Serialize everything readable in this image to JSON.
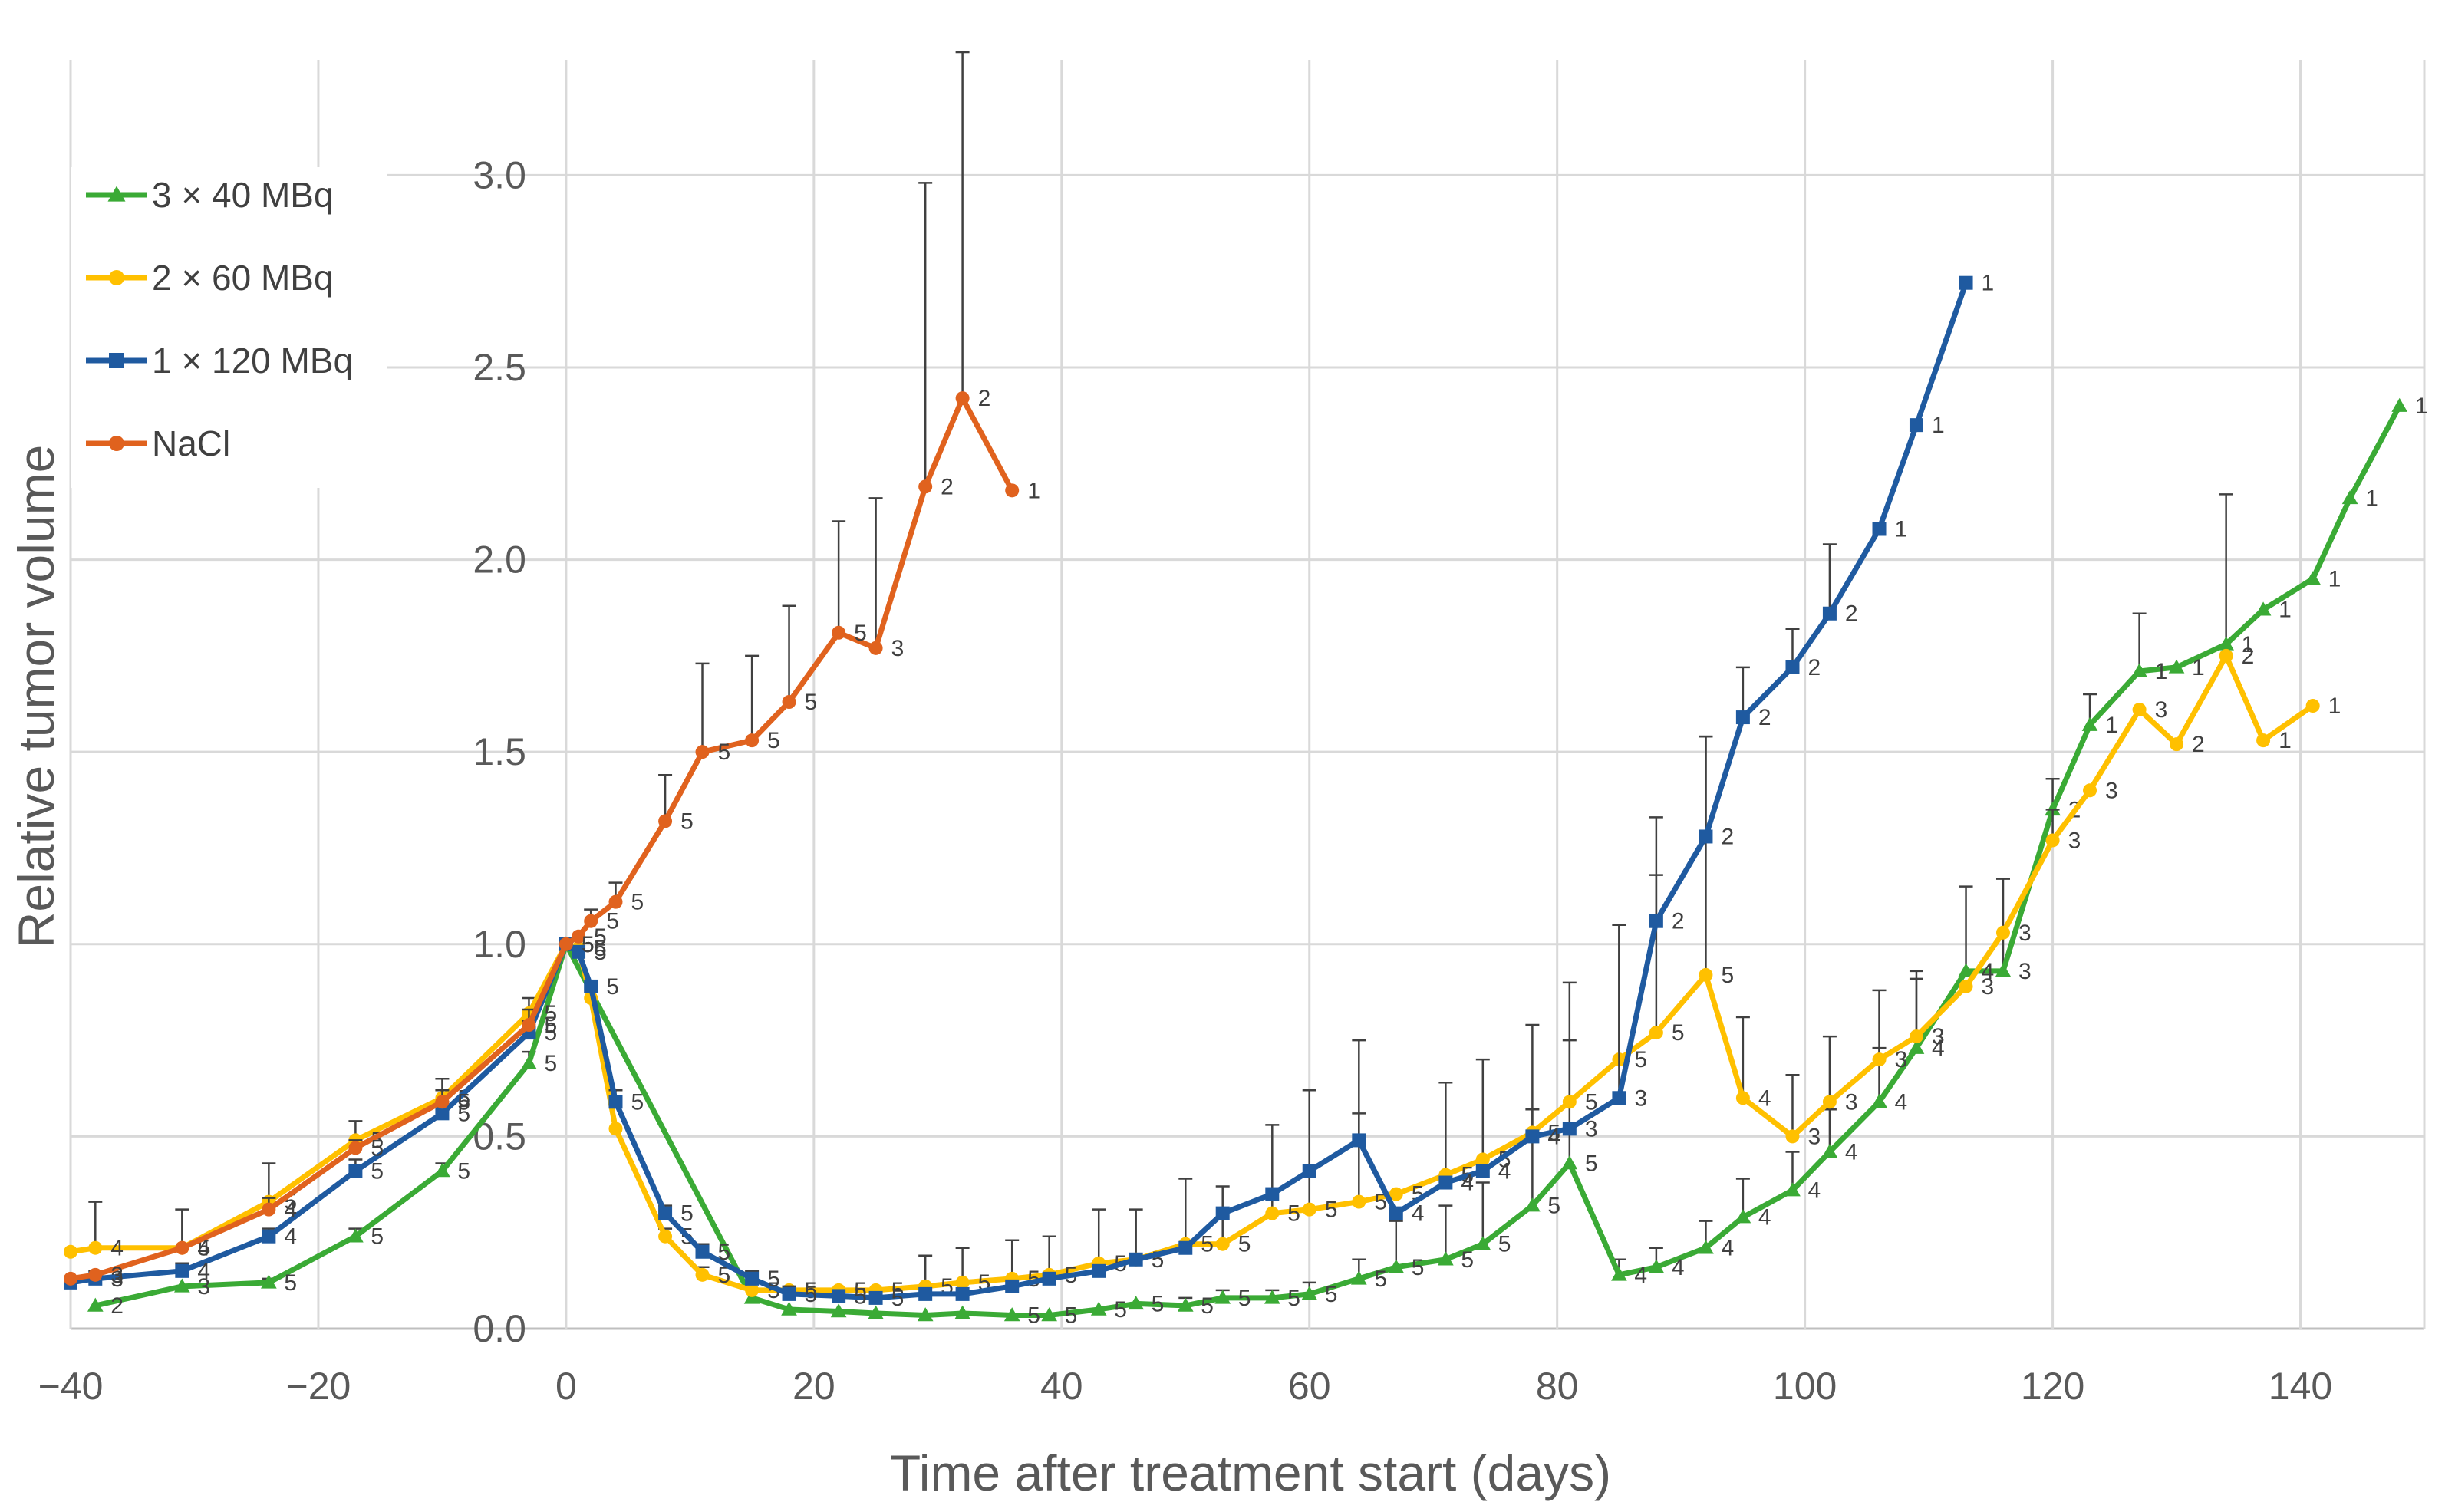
{
  "chart_data": {
    "type": "line",
    "title": "",
    "xlabel": "Time after treatment start (days)",
    "ylabel": "Relative tumor volume",
    "xlim": [
      -40,
      150
    ],
    "ylim": [
      0,
      3.3
    ],
    "xticks": [
      -40,
      -20,
      0,
      20,
      40,
      60,
      80,
      100,
      120,
      140
    ],
    "xtick_labels": [
      "−40",
      "−20",
      "0",
      "20",
      "40",
      "60",
      "80",
      "100",
      "120",
      "140"
    ],
    "yticks": [
      0,
      0.5,
      1,
      1.5,
      2,
      2.5,
      3
    ],
    "ytick_labels": [
      "0.0",
      "0.5",
      "1.0",
      "1.5",
      "2.0",
      "2.5",
      "3.0"
    ],
    "grid": true,
    "legend_position": "top-left",
    "series": [
      {
        "name": "3 × 40 MBq",
        "color": "#3aaa35",
        "marker": "triangle",
        "points": [
          {
            "x": -38,
            "y": 0.06,
            "n": "2"
          },
          {
            "x": -31,
            "y": 0.11,
            "n": "3"
          },
          {
            "x": -24,
            "y": 0.12,
            "n": "5",
            "err": 0.01
          },
          {
            "x": -17,
            "y": 0.24,
            "n": "5",
            "err": 0.02
          },
          {
            "x": -10,
            "y": 0.41,
            "n": "5",
            "err": 0.02
          },
          {
            "x": -3,
            "y": 0.69,
            "n": "5",
            "err": 0.03
          },
          {
            "x": 0,
            "y": 1.0,
            "n": "5"
          },
          {
            "x": 15,
            "y": 0.08
          },
          {
            "x": 18,
            "y": 0.05
          },
          {
            "x": 22,
            "y": 0.045
          },
          {
            "x": 25,
            "y": 0.04
          },
          {
            "x": 29,
            "y": 0.035
          },
          {
            "x": 32,
            "y": 0.04
          },
          {
            "x": 36,
            "y": 0.035,
            "n": "5"
          },
          {
            "x": 39,
            "y": 0.035,
            "n": "5"
          },
          {
            "x": 43,
            "y": 0.05,
            "n": "5"
          },
          {
            "x": 46,
            "y": 0.065,
            "n": "5"
          },
          {
            "x": 50,
            "y": 0.06,
            "n": "5",
            "err": 0.02
          },
          {
            "x": 53,
            "y": 0.08,
            "n": "5",
            "err": 0.02
          },
          {
            "x": 57,
            "y": 0.08,
            "n": "5",
            "err": 0.02
          },
          {
            "x": 60,
            "y": 0.09,
            "n": "5",
            "err": 0.03
          },
          {
            "x": 64,
            "y": 0.13,
            "n": "5",
            "err": 0.05
          },
          {
            "x": 67,
            "y": 0.16,
            "n": "5",
            "err": 0.12
          },
          {
            "x": 71,
            "y": 0.18,
            "n": "5",
            "err": 0.14
          },
          {
            "x": 74,
            "y": 0.22,
            "n": "5",
            "err": 0.16
          },
          {
            "x": 78,
            "y": 0.32,
            "n": "5",
            "err": 0.25
          },
          {
            "x": 81,
            "y": 0.43,
            "n": "5",
            "err": 0.32
          },
          {
            "x": 85,
            "y": 0.14,
            "n": "4",
            "err": 0.04
          },
          {
            "x": 88,
            "y": 0.16,
            "n": "4",
            "err": 0.05
          },
          {
            "x": 92,
            "y": 0.21,
            "n": "4",
            "err": 0.07
          },
          {
            "x": 95,
            "y": 0.29,
            "n": "4",
            "err": 0.1
          },
          {
            "x": 99,
            "y": 0.36,
            "n": "4",
            "err": 0.1
          },
          {
            "x": 102,
            "y": 0.46,
            "n": "4",
            "err": 0.11
          },
          {
            "x": 106,
            "y": 0.59,
            "n": "4",
            "err": 0.14
          },
          {
            "x": 109,
            "y": 0.73,
            "n": "4",
            "err": 0.18
          },
          {
            "x": 113,
            "y": 0.93,
            "n": "4",
            "err": 0.22
          },
          {
            "x": 116,
            "y": 0.93,
            "n": "3",
            "err": 0.24
          },
          {
            "x": 120,
            "y": 1.35,
            "n": "2",
            "err": 0.08
          },
          {
            "x": 123,
            "y": 1.57,
            "n": "1",
            "err": 0.08
          },
          {
            "x": 127,
            "y": 1.71,
            "n": "1",
            "err": 0.15
          },
          {
            "x": 130,
            "y": 1.72,
            "n": "1"
          },
          {
            "x": 134,
            "y": 1.78,
            "n": "1",
            "err": 0.39
          },
          {
            "x": 137,
            "y": 1.87,
            "n": "1"
          },
          {
            "x": 141,
            "y": 1.95,
            "n": "1"
          },
          {
            "x": 144,
            "y": 2.16,
            "n": "1"
          },
          {
            "x": 148,
            "y": 2.4,
            "n": "1"
          }
        ]
      },
      {
        "name": "2 × 60 MBq",
        "color": "#ffc000",
        "marker": "circle",
        "points": [
          {
            "x": -40,
            "y": 0.2
          },
          {
            "x": -38,
            "y": 0.21,
            "n": "4",
            "err": 0.12
          },
          {
            "x": -31,
            "y": 0.21,
            "n": "5",
            "err": 0.1
          },
          {
            "x": -24,
            "y": 0.33,
            "n": "5",
            "err": 0.1
          },
          {
            "x": -17,
            "y": 0.49,
            "n": "5",
            "err": 0.05
          },
          {
            "x": -10,
            "y": 0.6,
            "n": "5",
            "err": 0.05
          },
          {
            "x": -3,
            "y": 0.82,
            "n": "5",
            "err": 0.04
          },
          {
            "x": 0,
            "y": 1.0,
            "n": "5"
          },
          {
            "x": 1,
            "y": 0.99,
            "n": "5"
          },
          {
            "x": 2,
            "y": 0.86
          },
          {
            "x": 4,
            "y": 0.52
          },
          {
            "x": 8,
            "y": 0.24,
            "n": "5",
            "err": 0.02
          },
          {
            "x": 11,
            "y": 0.14,
            "n": "5",
            "err": 0.02
          },
          {
            "x": 15,
            "y": 0.1,
            "n": "5"
          },
          {
            "x": 18,
            "y": 0.1,
            "n": "5"
          },
          {
            "x": 22,
            "y": 0.1,
            "n": "5"
          },
          {
            "x": 25,
            "y": 0.1,
            "n": "5"
          },
          {
            "x": 29,
            "y": 0.11,
            "n": "5",
            "err": 0.08
          },
          {
            "x": 32,
            "y": 0.12,
            "n": "5",
            "err": 0.09
          },
          {
            "x": 36,
            "y": 0.13,
            "n": "5",
            "err": 0.1
          },
          {
            "x": 39,
            "y": 0.14,
            "n": "5",
            "err": 0.1
          },
          {
            "x": 43,
            "y": 0.17,
            "n": "5",
            "err": 0.14
          },
          {
            "x": 46,
            "y": 0.18,
            "n": "5",
            "err": 0.13
          },
          {
            "x": 50,
            "y": 0.22,
            "n": "5",
            "err": 0.17
          },
          {
            "x": 53,
            "y": 0.22,
            "n": "5",
            "err": 0.15
          },
          {
            "x": 57,
            "y": 0.3,
            "n": "5",
            "err": 0.23
          },
          {
            "x": 60,
            "y": 0.31,
            "n": "5",
            "err": 0.31
          },
          {
            "x": 64,
            "y": 0.33,
            "n": "5",
            "err": 0.23
          },
          {
            "x": 67,
            "y": 0.35,
            "n": "5"
          },
          {
            "x": 71,
            "y": 0.4,
            "n": "5",
            "err": 0.24
          },
          {
            "x": 74,
            "y": 0.44,
            "n": "5",
            "err": 0.26
          },
          {
            "x": 78,
            "y": 0.51,
            "n": "5",
            "err": 0.28
          },
          {
            "x": 81,
            "y": 0.59,
            "n": "5",
            "err": 0.31
          },
          {
            "x": 85,
            "y": 0.7,
            "n": "5",
            "err": 0.35
          },
          {
            "x": 88,
            "y": 0.77,
            "n": "5",
            "err": 0.41
          },
          {
            "x": 92,
            "y": 0.92,
            "n": "5",
            "err": 0.62
          },
          {
            "x": 95,
            "y": 0.6,
            "n": "4",
            "err": 0.21
          },
          {
            "x": 99,
            "y": 0.5,
            "n": "3",
            "err": 0.16
          },
          {
            "x": 102,
            "y": 0.59,
            "n": "3",
            "err": 0.17
          },
          {
            "x": 106,
            "y": 0.7,
            "n": "3",
            "err": 0.18
          },
          {
            "x": 109,
            "y": 0.76,
            "n": "3",
            "err": 0.17
          },
          {
            "x": 113,
            "y": 0.89,
            "n": "3"
          },
          {
            "x": 116,
            "y": 1.03,
            "n": "3"
          },
          {
            "x": 120,
            "y": 1.27,
            "n": "3",
            "err": 0.08
          },
          {
            "x": 123,
            "y": 1.4,
            "n": "3"
          },
          {
            "x": 127,
            "y": 1.61,
            "n": "3"
          },
          {
            "x": 130,
            "y": 1.52,
            "n": "2"
          },
          {
            "x": 134,
            "y": 1.75,
            "n": "2"
          },
          {
            "x": 137,
            "y": 1.53,
            "n": "1"
          },
          {
            "x": 141,
            "y": 1.62,
            "n": "1"
          }
        ]
      },
      {
        "name": "1 × 120 MBq",
        "color": "#1f5aa0",
        "marker": "square",
        "points": [
          {
            "x": -40,
            "y": 0.12
          },
          {
            "x": -38,
            "y": 0.13,
            "n": "3",
            "err": 0.02
          },
          {
            "x": -31,
            "y": 0.15,
            "n": "4",
            "err": 0.02
          },
          {
            "x": -24,
            "y": 0.24,
            "n": "4",
            "err": 0.02
          },
          {
            "x": -17,
            "y": 0.41,
            "n": "5",
            "err": 0.03
          },
          {
            "x": -10,
            "y": 0.56,
            "n": "5",
            "err": 0.03
          },
          {
            "x": -3,
            "y": 0.77,
            "n": "5",
            "err": 0.03
          },
          {
            "x": 0,
            "y": 1.0,
            "n": "5"
          },
          {
            "x": 1,
            "y": 0.98,
            "n": "5"
          },
          {
            "x": 2,
            "y": 0.89,
            "n": "5"
          },
          {
            "x": 4,
            "y": 0.59,
            "n": "5",
            "err": 0.03
          },
          {
            "x": 8,
            "y": 0.3,
            "n": "5",
            "err": 0.02
          },
          {
            "x": 11,
            "y": 0.2,
            "n": "5",
            "err": 0.02
          },
          {
            "x": 15,
            "y": 0.13,
            "n": "5",
            "err": 0.02
          },
          {
            "x": 18,
            "y": 0.09,
            "n": "5",
            "err": 0.02
          },
          {
            "x": 22,
            "y": 0.085,
            "n": "5"
          },
          {
            "x": 25,
            "y": 0.08,
            "n": "5"
          },
          {
            "x": 29,
            "y": 0.09
          },
          {
            "x": 32,
            "y": 0.09
          },
          {
            "x": 36,
            "y": 0.11
          },
          {
            "x": 39,
            "y": 0.13
          },
          {
            "x": 43,
            "y": 0.15
          },
          {
            "x": 46,
            "y": 0.18
          },
          {
            "x": 50,
            "y": 0.21
          },
          {
            "x": 53,
            "y": 0.3
          },
          {
            "x": 57,
            "y": 0.35
          },
          {
            "x": 60,
            "y": 0.41
          },
          {
            "x": 64,
            "y": 0.49,
            "err": 0.26
          },
          {
            "x": 67,
            "y": 0.3,
            "n": "4"
          },
          {
            "x": 71,
            "y": 0.38,
            "n": "4"
          },
          {
            "x": 74,
            "y": 0.41,
            "n": "4"
          },
          {
            "x": 78,
            "y": 0.5,
            "n": "4"
          },
          {
            "x": 81,
            "y": 0.52,
            "n": "3"
          },
          {
            "x": 85,
            "y": 0.6,
            "n": "3",
            "err": 0.45
          },
          {
            "x": 88,
            "y": 1.06,
            "n": "2",
            "err": 0.27
          },
          {
            "x": 92,
            "y": 1.28,
            "n": "2",
            "err": 0.26
          },
          {
            "x": 95,
            "y": 1.59,
            "n": "2",
            "err": 0.13
          },
          {
            "x": 99,
            "y": 1.72,
            "n": "2",
            "err": 0.1
          },
          {
            "x": 102,
            "y": 1.86,
            "n": "2",
            "err": 0.18
          },
          {
            "x": 106,
            "y": 2.08,
            "n": "1"
          },
          {
            "x": 109,
            "y": 2.35,
            "n": "1"
          },
          {
            "x": 113,
            "y": 2.72,
            "n": "1"
          }
        ]
      },
      {
        "name": "NaCl",
        "color": "#e0621e",
        "marker": "circle",
        "points": [
          {
            "x": -40,
            "y": 0.13
          },
          {
            "x": -38,
            "y": 0.14,
            "n": "3"
          },
          {
            "x": -31,
            "y": 0.21,
            "n": "4"
          },
          {
            "x": -24,
            "y": 0.31,
            "n": "4",
            "err": 0.03
          },
          {
            "x": -17,
            "y": 0.47,
            "n": "5",
            "err": 0.02
          },
          {
            "x": -10,
            "y": 0.59,
            "n": "5",
            "err": 0.03
          },
          {
            "x": -3,
            "y": 0.79,
            "n": "5",
            "err": 0.04
          },
          {
            "x": 0,
            "y": 1.0,
            "n": "5"
          },
          {
            "x": 1,
            "y": 1.02,
            "n": "5"
          },
          {
            "x": 2,
            "y": 1.06,
            "n": "5",
            "err": 0.03
          },
          {
            "x": 4,
            "y": 1.11,
            "n": "5",
            "err": 0.05
          },
          {
            "x": 8,
            "y": 1.32,
            "n": "5",
            "err": 0.12
          },
          {
            "x": 11,
            "y": 1.5,
            "n": "5",
            "err": 0.23
          },
          {
            "x": 15,
            "y": 1.53,
            "n": "5",
            "err": 0.22
          },
          {
            "x": 18,
            "y": 1.63,
            "n": "5",
            "err": 0.25
          },
          {
            "x": 22,
            "y": 1.81,
            "n": "5",
            "err": 0.29
          },
          {
            "x": 25,
            "y": 1.77,
            "n": "3",
            "err": 0.39
          },
          {
            "x": 29,
            "y": 2.19,
            "n": "2",
            "err": 0.79
          },
          {
            "x": 32,
            "y": 2.42,
            "n": "2",
            "err": 0.9
          },
          {
            "x": 36,
            "y": 2.18,
            "n": "1"
          }
        ]
      }
    ]
  }
}
